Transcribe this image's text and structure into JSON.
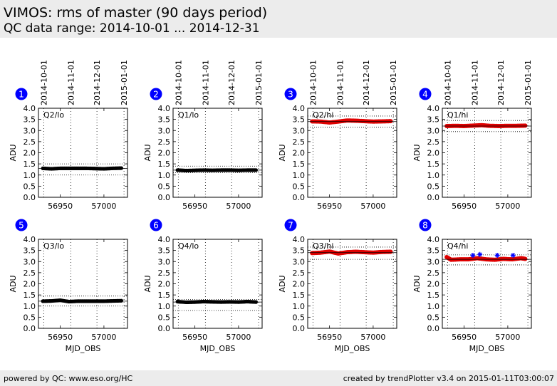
{
  "header": {
    "title": "VIMOS: rms of master (90 days period)",
    "subtitle": "QC data range: 2014-10-01 ... 2014-12-31"
  },
  "footer": {
    "left": "powered by QC: www.eso.org/HC",
    "right": "created by trendPlotter v3.4 on 2015-01-11T03:00:07"
  },
  "colors": {
    "header_bg": "#ececec",
    "badge": "#0000ff",
    "black_series": "#000000",
    "red_series": "#e00000",
    "outlier_marker": "#0000ff"
  },
  "date_ticks": [
    {
      "label": "2014-10-01",
      "mjd": 56931
    },
    {
      "label": "2014-11-01",
      "mjd": 56962
    },
    {
      "label": "2014-12-01",
      "mjd": 56992
    },
    {
      "label": "2015-01-01",
      "mjd": 57023
    }
  ],
  "chart_data": [
    {
      "type": "scatter",
      "panel": "1",
      "label": "Q2/lo",
      "color": "black",
      "ylabel": "ADU",
      "xlabel": "",
      "ylim": [
        0,
        4.0
      ],
      "xlim": [
        56925,
        57027
      ],
      "xticks": [
        56950,
        57000
      ],
      "yticks": [
        "0.0",
        "0.5",
        "1.0",
        "1.5",
        "2.0",
        "2.5",
        "3.0",
        "3.5",
        "4.0"
      ],
      "level": 1.3,
      "upper_limit": 1.5,
      "lower_limit": 1.0,
      "series": [
        {
          "x": [
            56930,
            56940,
            56950,
            56960,
            56970,
            56980,
            56990,
            57000,
            57010,
            57020
          ],
          "y": [
            1.3,
            1.28,
            1.3,
            1.3,
            1.3,
            1.3,
            1.29,
            1.28,
            1.3,
            1.31
          ]
        }
      ]
    },
    {
      "type": "scatter",
      "panel": "2",
      "label": "Q1/lo",
      "color": "black",
      "ylabel": "ADU",
      "xlabel": "",
      "ylim": [
        0,
        4.0
      ],
      "xlim": [
        56925,
        57027
      ],
      "xticks": [
        56950,
        57000
      ],
      "yticks": [
        "0.0",
        "0.5",
        "1.0",
        "1.5",
        "2.0",
        "2.5",
        "3.0",
        "3.5",
        "4.0"
      ],
      "level": 1.22,
      "upper_limit": 1.4,
      "lower_limit": 1.1,
      "series": [
        {
          "x": [
            56930,
            56940,
            56950,
            56960,
            56970,
            56980,
            56990,
            57000,
            57010,
            57020
          ],
          "y": [
            1.22,
            1.2,
            1.21,
            1.22,
            1.21,
            1.22,
            1.22,
            1.21,
            1.22,
            1.22
          ]
        }
      ]
    },
    {
      "type": "scatter",
      "panel": "3",
      "label": "Q2/hi",
      "color": "red",
      "ylabel": "ADU",
      "xlabel": "",
      "ylim": [
        0,
        4.0
      ],
      "xlim": [
        56925,
        57027
      ],
      "xticks": [
        56950,
        57000
      ],
      "yticks": [
        "0.0",
        "0.5",
        "1.0",
        "1.5",
        "2.0",
        "2.5",
        "3.0",
        "3.5",
        "4.0"
      ],
      "level": 3.4,
      "upper_limit": 3.65,
      "lower_limit": 3.15,
      "series": [
        {
          "x": [
            56930,
            56940,
            56950,
            56960,
            56970,
            56980,
            56990,
            57000,
            57010,
            57020
          ],
          "y": [
            3.41,
            3.4,
            3.36,
            3.4,
            3.45,
            3.44,
            3.42,
            3.4,
            3.41,
            3.42
          ]
        }
      ]
    },
    {
      "type": "scatter",
      "panel": "4",
      "label": "Q1/hi",
      "color": "red",
      "ylabel": "ADU",
      "xlabel": "",
      "ylim": [
        0,
        4.0
      ],
      "xlim": [
        56925,
        57027
      ],
      "xticks": [
        56950,
        57000
      ],
      "yticks": [
        "0.0",
        "0.5",
        "1.0",
        "1.5",
        "2.0",
        "2.5",
        "3.0",
        "3.5",
        "4.0"
      ],
      "level": 3.2,
      "upper_limit": 3.45,
      "lower_limit": 2.95,
      "series": [
        {
          "x": [
            56930,
            56940,
            56950,
            56960,
            56970,
            56980,
            56990,
            57000,
            57010,
            57020
          ],
          "y": [
            3.2,
            3.21,
            3.2,
            3.22,
            3.24,
            3.21,
            3.2,
            3.21,
            3.21,
            3.22
          ]
        }
      ]
    },
    {
      "type": "scatter",
      "panel": "5",
      "label": "Q3/lo",
      "color": "black",
      "ylabel": "ADU",
      "xlabel": "MJD_OBS",
      "ylim": [
        0,
        4.0
      ],
      "xlim": [
        56925,
        57027
      ],
      "xticks": [
        56950,
        57000
      ],
      "yticks": [
        "0.0",
        "0.5",
        "1.0",
        "1.5",
        "2.0",
        "2.5",
        "3.0",
        "3.5",
        "4.0"
      ],
      "level": 1.22,
      "upper_limit": 1.45,
      "lower_limit": 1.0,
      "series": [
        {
          "x": [
            56930,
            56940,
            56950,
            56960,
            56970,
            56980,
            56990,
            57000,
            57010,
            57020
          ],
          "y": [
            1.22,
            1.23,
            1.26,
            1.2,
            1.22,
            1.22,
            1.22,
            1.22,
            1.23,
            1.24
          ]
        }
      ]
    },
    {
      "type": "scatter",
      "panel": "6",
      "label": "Q4/lo",
      "color": "black",
      "ylabel": "ADU",
      "xlabel": "MJD_OBS",
      "ylim": [
        0,
        4.0
      ],
      "xlim": [
        56925,
        57027
      ],
      "xticks": [
        56950,
        57000
      ],
      "yticks": [
        "0.0",
        "0.5",
        "1.0",
        "1.5",
        "2.0",
        "2.5",
        "3.0",
        "3.5",
        "4.0"
      ],
      "level": 1.18,
      "upper_limit": 1.3,
      "lower_limit": 0.8,
      "series": [
        {
          "x": [
            56930,
            56940,
            56950,
            56960,
            56970,
            56980,
            56990,
            57000,
            57010,
            57020
          ],
          "y": [
            1.2,
            1.17,
            1.18,
            1.2,
            1.19,
            1.18,
            1.19,
            1.18,
            1.2,
            1.18
          ]
        }
      ]
    },
    {
      "type": "scatter",
      "panel": "7",
      "label": "Q3/hi",
      "color": "red",
      "ylabel": "ADU",
      "xlabel": "MJD_OBS",
      "ylim": [
        0,
        4.0
      ],
      "xlim": [
        56925,
        57027
      ],
      "xticks": [
        56950,
        57000
      ],
      "yticks": [
        "0.0",
        "0.5",
        "1.0",
        "1.5",
        "2.0",
        "2.5",
        "3.0",
        "3.5",
        "4.0"
      ],
      "level": 3.4,
      "upper_limit": 3.65,
      "lower_limit": 3.1,
      "series": [
        {
          "x": [
            56930,
            56940,
            56950,
            56960,
            56970,
            56980,
            56990,
            57000,
            57010,
            57020
          ],
          "y": [
            3.38,
            3.4,
            3.45,
            3.36,
            3.42,
            3.44,
            3.42,
            3.4,
            3.43,
            3.44
          ]
        }
      ]
    },
    {
      "type": "scatter",
      "panel": "8",
      "label": "Q4/hi",
      "color": "red",
      "ylabel": "ADU",
      "xlabel": "MJD_OBS",
      "ylim": [
        0,
        4.0
      ],
      "xlim": [
        56925,
        57027
      ],
      "xticks": [
        56950,
        57000
      ],
      "yticks": [
        "0.0",
        "0.5",
        "1.0",
        "1.5",
        "2.0",
        "2.5",
        "3.0",
        "3.5",
        "4.0"
      ],
      "level": 3.1,
      "upper_limit": 3.3,
      "lower_limit": 2.85,
      "series": [
        {
          "x": [
            56930,
            56935,
            56945,
            56955,
            56965,
            56975,
            56985,
            56995,
            57005,
            57015,
            57020
          ],
          "y": [
            3.2,
            3.08,
            3.1,
            3.1,
            3.15,
            3.1,
            3.08,
            3.12,
            3.1,
            3.15,
            3.12
          ]
        }
      ],
      "outliers": [
        {
          "x": [
            56960,
            56968,
            56988,
            57006
          ],
          "y": [
            3.28,
            3.32,
            3.28,
            3.28
          ]
        }
      ]
    }
  ]
}
